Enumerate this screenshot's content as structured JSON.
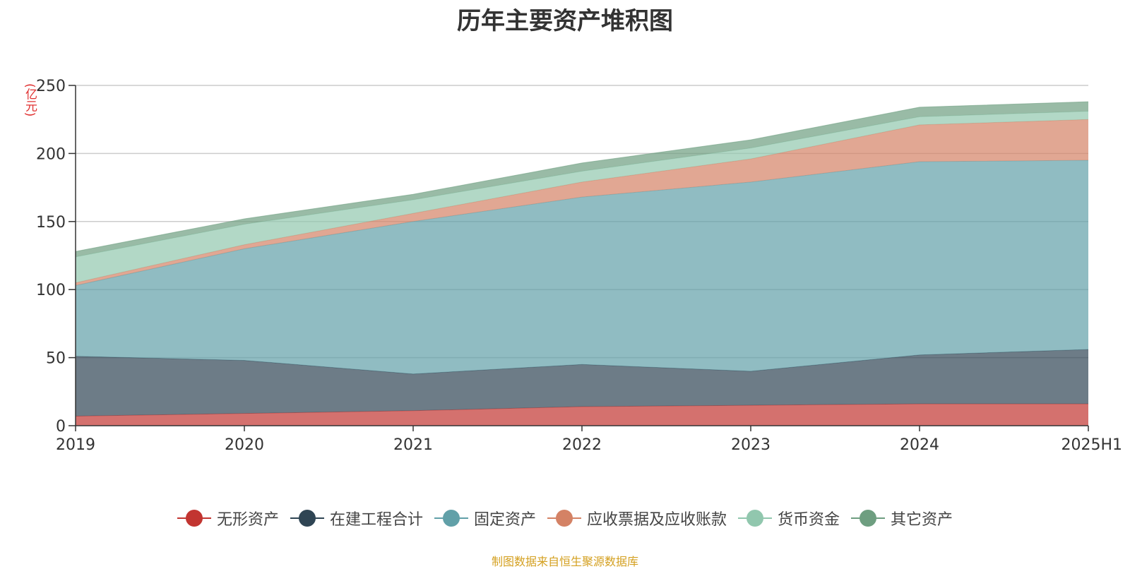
{
  "chart_data": {
    "type": "area",
    "stacked": true,
    "title": "历年主要资产堆积图",
    "unit": "(亿元)",
    "categories": [
      "2019",
      "2020",
      "2021",
      "2022",
      "2023",
      "2024",
      "2025H1"
    ],
    "ylim": [
      0,
      250
    ],
    "yticks": [
      0,
      50,
      100,
      150,
      200,
      250
    ],
    "grid": true,
    "legend_position": "bottom",
    "series": [
      {
        "name": "无形资产",
        "color": "#c23531",
        "values": [
          7,
          9,
          11,
          14,
          15,
          16,
          16
        ]
      },
      {
        "name": "在建工程合计",
        "color": "#2f4554",
        "values": [
          44,
          39,
          27,
          31,
          25,
          36,
          40
        ]
      },
      {
        "name": "固定资产",
        "color": "#61a0a8",
        "values": [
          52,
          82,
          112,
          123,
          139,
          142,
          139
        ]
      },
      {
        "name": "应收票据及应收账款",
        "color": "#d48265",
        "values": [
          2,
          3,
          6,
          11,
          17,
          27,
          30
        ]
      },
      {
        "name": "货币资金",
        "color": "#91c7ae",
        "values": [
          19,
          15,
          10,
          8,
          8,
          6,
          6
        ]
      },
      {
        "name": "其它资产",
        "color": "#6e9e80",
        "values": [
          4,
          4,
          4,
          6,
          6,
          7,
          7
        ]
      }
    ]
  },
  "source_note": "制图数据来自恒生聚源数据库"
}
